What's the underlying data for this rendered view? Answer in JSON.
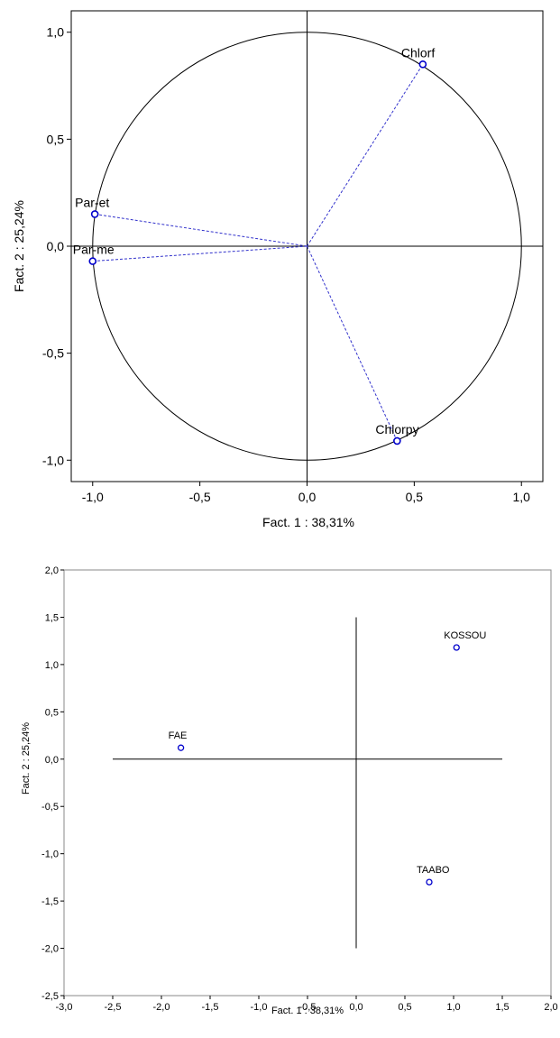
{
  "chart_data": [
    {
      "type": "scatter",
      "xlabel": "Fact. 1  : 38,31%",
      "ylabel": "Fact. 2  : 25,24%",
      "xlim": [
        -1.1,
        1.1
      ],
      "ylim": [
        -1.1,
        1.1
      ],
      "x_ticks": [
        "-1,0",
        "-0,5",
        "0,0",
        "0,5",
        "1,0"
      ],
      "y_ticks": [
        "1,0",
        "0,5",
        "0,0",
        "-0,5",
        "-1,0"
      ],
      "unit_circle": true,
      "vectors_from_origin": true,
      "points": [
        {
          "label": "Chlorf",
          "x": 0.54,
          "y": 0.85
        },
        {
          "label": "Par-et",
          "x": -0.99,
          "y": 0.15
        },
        {
          "label": "Par-me",
          "x": -1.0,
          "y": -0.07
        },
        {
          "label": "Chlorpy",
          "x": 0.42,
          "y": -0.91
        }
      ],
      "point_color": "#0000cc",
      "vector_color": "#3333cc"
    },
    {
      "type": "scatter",
      "xlabel": "Fact. 1  : 38,31%",
      "ylabel": "Fact. 2  : 25,24%",
      "xlim": [
        -3.0,
        2.0
      ],
      "ylim": [
        -2.5,
        2.0
      ],
      "x_ticks": [
        "-3,0",
        "-2,5",
        "-2,0",
        "-1,5",
        "-1,0",
        "-0,5",
        "0,0",
        "0,5",
        "1,0",
        "1,5",
        "2,0"
      ],
      "y_ticks": [
        "2,0",
        "1,5",
        "1,0",
        "0,5",
        "0,0",
        "-0,5",
        "-1,0",
        "-1,5",
        "-2,0",
        "-2,5"
      ],
      "points": [
        {
          "label": "KOSSOU",
          "x": 1.03,
          "y": 1.18
        },
        {
          "label": "FAE",
          "x": -1.8,
          "y": 0.12
        },
        {
          "label": "TAABO",
          "x": 0.75,
          "y": -1.3
        }
      ],
      "point_color": "#0000cc"
    }
  ]
}
